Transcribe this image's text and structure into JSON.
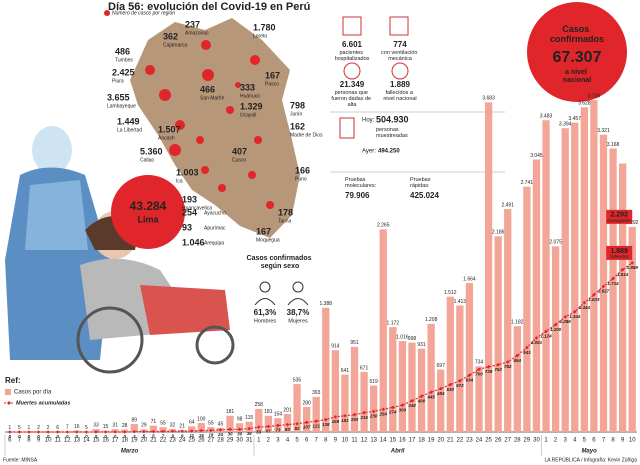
{
  "header": {
    "title": "Día 56: evolución del Covid-19 en Perú"
  },
  "map": {
    "legend": "Número de casos por región",
    "regions": [
      {
        "cases": "237",
        "name": "Amazonas"
      },
      {
        "cases": "362",
        "name": "Cajamarca"
      },
      {
        "cases": "486",
        "name": "Tumbes"
      },
      {
        "cases": "2.425",
        "name": "Piura"
      },
      {
        "cases": "3.655",
        "name": "Lambayeque"
      },
      {
        "cases": "1.449",
        "name": "La Libertad"
      },
      {
        "cases": "1.507",
        "name": "Áncash"
      },
      {
        "cases": "5.360",
        "name": "Callao"
      },
      {
        "cases": "1.003",
        "name": "Ica"
      },
      {
        "cases": "193",
        "name": "Huancavelica"
      },
      {
        "cases": "254",
        "name": "Ayacucho"
      },
      {
        "cases": "93",
        "name": "Apurímac"
      },
      {
        "cases": "1.046",
        "name": "Arequipa"
      },
      {
        "cases": "1.780",
        "name": "Loreto"
      },
      {
        "cases": "167",
        "name": "Pasco"
      },
      {
        "cases": "466",
        "name": "San Martín"
      },
      {
        "cases": "333",
        "name": "Huánuco"
      },
      {
        "cases": "1.329",
        "name": "Ucayali"
      },
      {
        "cases": "798",
        "name": "Junín"
      },
      {
        "cases": "162",
        "name": "Madre de Dios"
      },
      {
        "cases": "407",
        "name": "Cusco"
      },
      {
        "cases": "166",
        "name": "Puno"
      },
      {
        "cases": "178",
        "name": "Tacna"
      },
      {
        "cases": "167",
        "name": "Moquegua"
      }
    ]
  },
  "lima": {
    "cases": "43.284",
    "name": "Lima"
  },
  "national": {
    "title": "Casos confirmados",
    "value": "67.307",
    "subtitle": "a nivel nacional"
  },
  "stats": {
    "items": [
      {
        "value": "6.601",
        "label": "pacientes hospitalizados"
      },
      {
        "value": "774",
        "label": "con ventilación mecánica"
      },
      {
        "value": "21.349",
        "label": "personas que fueron dadas de alta"
      },
      {
        "value": "1.889",
        "label": "fallecidos a nivel nacional"
      }
    ],
    "tests": {
      "today_label": "Hoy:",
      "today": "504.930",
      "today_note": "personas muestreadas",
      "yesterday_label": "Ayer:",
      "yesterday": "494.250",
      "molecular_label": "Pruebas moleculares:",
      "molecular": "79.906",
      "rapid_label": "Pruebas rápidas:",
      "rapid": "425.024"
    }
  },
  "sex": {
    "title": "Casos confirmados según sexo",
    "items": [
      {
        "value": "61,3%",
        "label": "Hombres"
      },
      {
        "value": "38,7%",
        "label": "Mujeres"
      }
    ]
  },
  "legend": {
    "title": "Ref:"
  },
  "footer": {
    "source": "Fuente: MINSA",
    "credit": "LA REPÚBLICA / Infografía: Kevin Zúñiga"
  },
  "chart_data": {
    "type": "bar",
    "ylim": [
      0,
      4000
    ],
    "categories": [
      "6",
      "7",
      "8",
      "9",
      "10",
      "11",
      "12",
      "13",
      "14",
      "15",
      "16",
      "17",
      "18",
      "19",
      "20",
      "21",
      "22",
      "23",
      "24",
      "25",
      "26",
      "27",
      "28",
      "29",
      "30",
      "31",
      "1",
      "2",
      "3",
      "4",
      "5",
      "6",
      "7",
      "8",
      "9",
      "10",
      "11",
      "12",
      "13",
      "14",
      "15",
      "16",
      "17",
      "18",
      "19",
      "20",
      "21",
      "22",
      "23",
      "24",
      "25",
      "26",
      "27",
      "28",
      "29",
      "30",
      "1",
      "2",
      "3",
      "4",
      "5",
      "6",
      "7",
      "8",
      "9",
      "10"
    ],
    "groups": [
      "Marzo",
      "Abril",
      "Mayo"
    ],
    "series": [
      {
        "name": "Casos por día",
        "type": "bar",
        "color": "#f3a597",
        "values": [
          1,
          5,
          1,
          2,
          2,
          6,
          7,
          16,
          5,
          33,
          15,
          31,
          28,
          89,
          29,
          71,
          55,
          32,
          21,
          64,
          100,
          55,
          45,
          181,
          98,
          115,
          258,
          181,
          154,
          201,
          535,
          280,
          393,
          1388,
          914,
          641,
          951,
          671,
          519,
          2265,
          1172,
          1016,
          998,
          931,
          1208,
          697,
          1512,
          1413,
          1664,
          734,
          3683,
          2186,
          2491,
          1182,
          2741,
          3045,
          3483,
          2075,
          3394,
          3457,
          3628,
          3709,
          3321,
          3168,
          3000,
          2292
        ],
        "value_labels": [
          "1",
          "5",
          "1",
          "2",
          "2",
          "6",
          "7",
          "16",
          "5",
          "33",
          "15",
          "31",
          "28",
          "89",
          "29",
          "71",
          "55",
          "32",
          "21",
          "64",
          "100",
          "55",
          "45",
          "181",
          "98",
          "115",
          "258",
          "181",
          "154",
          "201",
          "535",
          "280",
          "393",
          "1.388",
          "914",
          "641",
          "951",
          "671",
          "519",
          "2.265",
          "1.172",
          "1.016",
          "998",
          "931",
          "1.208",
          "697",
          "1.512",
          "1.413",
          "1.664",
          "734",
          "3.683",
          "2.186",
          "2.491",
          "1.182",
          "2.741",
          "3.045",
          "3.483",
          "2.075",
          "3.394",
          "3.457",
          "3.628",
          "3.709",
          "3.321",
          "3.168",
          null,
          "2.292"
        ]
      },
      {
        "name": "Muertes acumuladas",
        "type": "line",
        "color": "#e0262b",
        "values": [
          0,
          0,
          0,
          0,
          0,
          0,
          0,
          0,
          0,
          0,
          0,
          0,
          0,
          3,
          5,
          5,
          7,
          9,
          9,
          11,
          16,
          18,
          24,
          30,
          30,
          38,
          55,
          61,
          73,
          83,
          92,
          107,
          121,
          138,
          169,
          181,
          193,
          216,
          230,
          254,
          274,
          300,
          348,
          400,
          445,
          484,
          530,
          572,
          634,
          700,
          728,
          752,
          782,
          854,
          943,
          1051,
          1124,
          1200,
          1286,
          1344,
          1444,
          1533,
          1627,
          1714,
          1814,
          1889
        ],
        "value_labels": [
          "0",
          "0",
          "0",
          "0",
          "0",
          "0",
          "0",
          "0",
          "0",
          "0",
          "0",
          "0",
          "0",
          "3",
          "5",
          "5",
          "7",
          "9",
          "9",
          "11",
          "16",
          "18",
          "24",
          "30",
          "30",
          "38",
          "55",
          "61",
          "73",
          "83",
          "92",
          "107",
          "121",
          "138",
          "169",
          "181",
          "193",
          "216",
          "230",
          "254",
          "274",
          "300",
          "348",
          "400",
          "445",
          "484",
          "530",
          "572",
          "634",
          "700",
          "728",
          "752",
          "782",
          "854",
          "943",
          "1.051",
          "1.124",
          "1.200",
          "1.286",
          "1.344",
          "1.444",
          "1.533",
          "1.627",
          "1.714",
          "1.814",
          "1.889"
        ]
      }
    ],
    "annotations": [
      {
        "value": "2.292",
        "text": "contagiados"
      },
      {
        "value": "1.889",
        "text": "fallecidos"
      }
    ]
  }
}
